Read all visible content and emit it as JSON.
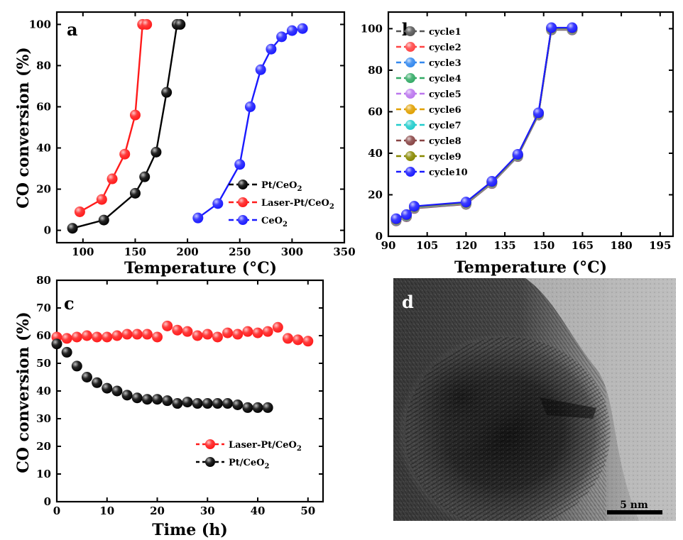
{
  "chart_data": [
    {
      "panel": "a",
      "type": "line",
      "xlabel": "Temperature (°C)",
      "ylabel": "CO conversion (%)",
      "xlim": [
        75,
        350
      ],
      "ylim": [
        -6,
        106
      ],
      "xticks": [
        100,
        150,
        200,
        250,
        300,
        350
      ],
      "yticks": [
        0,
        20,
        40,
        60,
        80,
        100
      ],
      "legend_position": "lower-right",
      "series": [
        {
          "name": "Pt/CeO",
          "name_sub": "2",
          "color": "#000000",
          "x": [
            90,
            120,
            150,
            159,
            170,
            180,
            190,
            193
          ],
          "y": [
            1,
            5,
            18,
            26,
            38,
            67,
            100,
            100
          ]
        },
        {
          "name": "Laser-Pt/CeO",
          "name_sub": "2",
          "color": "#ff1a1a",
          "x": [
            97,
            118,
            128,
            140,
            150,
            157,
            161
          ],
          "y": [
            9,
            15,
            25,
            37,
            56,
            100,
            100
          ]
        },
        {
          "name": "CeO",
          "name_sub": "2",
          "color": "#1a1aff",
          "x": [
            210,
            229,
            250,
            260,
            270,
            280,
            290,
            300,
            310
          ],
          "y": [
            6,
            13,
            32,
            60,
            78,
            88,
            94,
            97,
            98
          ]
        }
      ]
    },
    {
      "panel": "b",
      "type": "line",
      "xlabel": "Temperature (°C)",
      "ylabel": "",
      "xlim": [
        90,
        200
      ],
      "ylim": [
        0,
        108
      ],
      "xticks": [
        90,
        105,
        120,
        135,
        150,
        165,
        180,
        195
      ],
      "yticks": [
        0,
        20,
        40,
        60,
        80,
        100
      ],
      "legend_position": "upper-left",
      "x": [
        93,
        97,
        100,
        120,
        130,
        140,
        148,
        153,
        161
      ],
      "y": [
        8,
        10,
        14,
        16,
        26,
        39,
        59,
        100,
        100
      ],
      "series": [
        {
          "name": "cycle1",
          "color": "#555555"
        },
        {
          "name": "cycle2",
          "color": "#ff4444"
        },
        {
          "name": "cycle3",
          "color": "#3388ee"
        },
        {
          "name": "cycle4",
          "color": "#33aa66"
        },
        {
          "name": "cycle5",
          "color": "#bb77ee"
        },
        {
          "name": "cycle6",
          "color": "#e0a000"
        },
        {
          "name": "cycle7",
          "color": "#22cccc"
        },
        {
          "name": "cycle8",
          "color": "#884444"
        },
        {
          "name": "cycle9",
          "color": "#888800"
        },
        {
          "name": "cycle10",
          "color": "#1a1aff"
        }
      ]
    },
    {
      "panel": "c",
      "type": "scatter",
      "xlabel": "Time (h)",
      "ylabel": "CO conversion (%)",
      "xlim": [
        0,
        53
      ],
      "ylim": [
        0,
        80
      ],
      "xticks": [
        0,
        10,
        20,
        30,
        40,
        50
      ],
      "yticks": [
        0,
        10,
        20,
        30,
        40,
        50,
        60,
        70,
        80
      ],
      "legend_position": "lower-right",
      "series": [
        {
          "name": "Laser-Pt/CeO",
          "name_sub": "2",
          "color": "#ff1a1a",
          "x": [
            0,
            2,
            4,
            6,
            8,
            10,
            12,
            14,
            16,
            18,
            20,
            22,
            24,
            26,
            28,
            30,
            32,
            34,
            36,
            38,
            40,
            42,
            44,
            46,
            48,
            50
          ],
          "y": [
            59.5,
            59,
            59.5,
            60,
            59.5,
            59.5,
            60,
            60.5,
            60.5,
            60.5,
            59.5,
            63.5,
            62,
            61.5,
            60,
            60.5,
            59.5,
            61,
            60.5,
            61.5,
            61,
            61.5,
            63,
            59,
            58.5,
            58
          ]
        },
        {
          "name": "Pt/CeO",
          "name_sub": "2",
          "color": "#000000",
          "x": [
            0,
            2,
            4,
            6,
            8,
            10,
            12,
            14,
            16,
            18,
            20,
            22,
            24,
            26,
            28,
            30,
            32,
            34,
            36,
            38,
            40,
            42
          ],
          "y": [
            57,
            54,
            49,
            45,
            43,
            41,
            40,
            38.5,
            37.5,
            37,
            37,
            36.5,
            35.5,
            36,
            35.5,
            35.5,
            35.5,
            35.5,
            35,
            34,
            34,
            34
          ]
        }
      ]
    }
  ],
  "panel_d": {
    "letter": "d",
    "scale_bar_label": "5 nm"
  }
}
